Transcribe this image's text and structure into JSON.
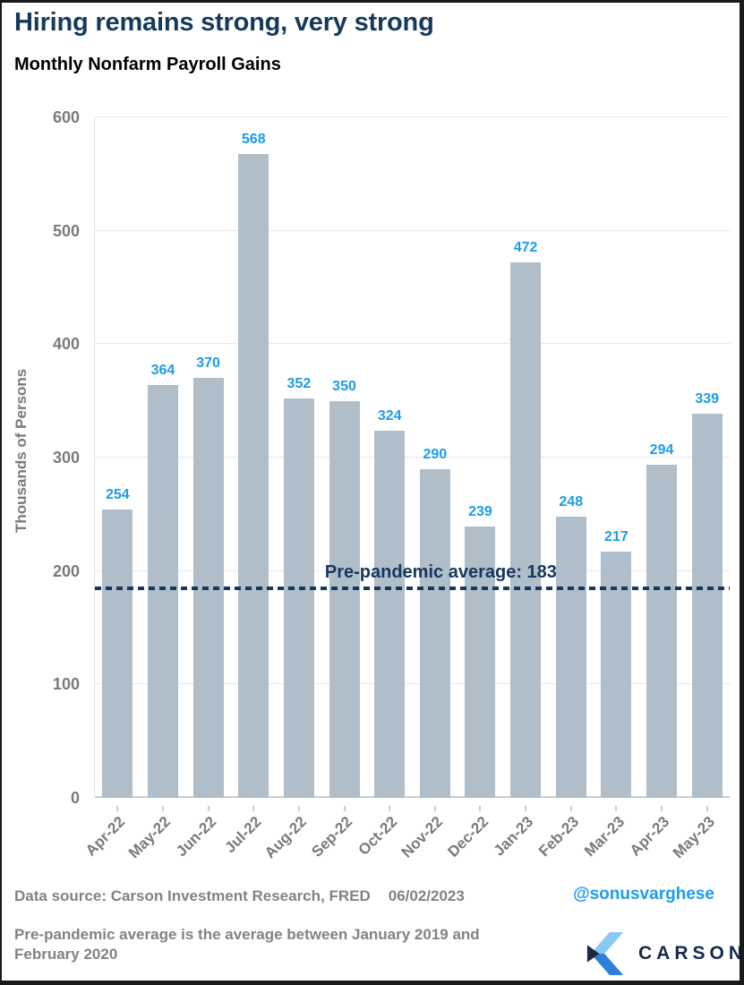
{
  "header": {
    "title": "Hiring remains strong, very strong",
    "subtitle": "Monthly Nonfarm Payroll Gains"
  },
  "chart_data": {
    "type": "bar",
    "title": "Monthly Nonfarm Payroll Gains",
    "categories": [
      "Apr-22",
      "May-22",
      "Jun-22",
      "Jul-22",
      "Aug-22",
      "Sep-22",
      "Oct-22",
      "Nov-22",
      "Dec-22",
      "Jan-23",
      "Feb-23",
      "Mar-23",
      "Apr-23",
      "May-23"
    ],
    "values": [
      254,
      364,
      370,
      568,
      352,
      350,
      324,
      290,
      239,
      472,
      248,
      217,
      294,
      339
    ],
    "xlabel": "",
    "ylabel": "Thousands of Persons",
    "ylim": [
      0,
      600
    ],
    "ytick_step": 100,
    "grid": true,
    "legend": false,
    "value_labels": true,
    "reference_line": {
      "value": 183,
      "label": "Pre-pandemic average: 183"
    }
  },
  "style": {
    "bar_color": "#AFBEC9",
    "value_label_color": "#1B9CE9",
    "axis_text_color": "#7A7A7A",
    "grid_color": "#E8E8E8",
    "title_color": "#17395C",
    "reference_color": "#17375E",
    "handle_color": "#1D9BF0",
    "logo_light_blue": "#85C9F4",
    "logo_mid_blue": "#2E7FD9",
    "logo_navy": "#1B2B45"
  },
  "footer": {
    "source": "Data source: Carson Investment Research, FRED",
    "date": "06/02/2023",
    "handle": "@sonusvarghese",
    "footnote_line1": "Pre-pandemic average is the average between January 2019 and",
    "footnote_line2": "February 2020",
    "brand": "CARSON"
  }
}
